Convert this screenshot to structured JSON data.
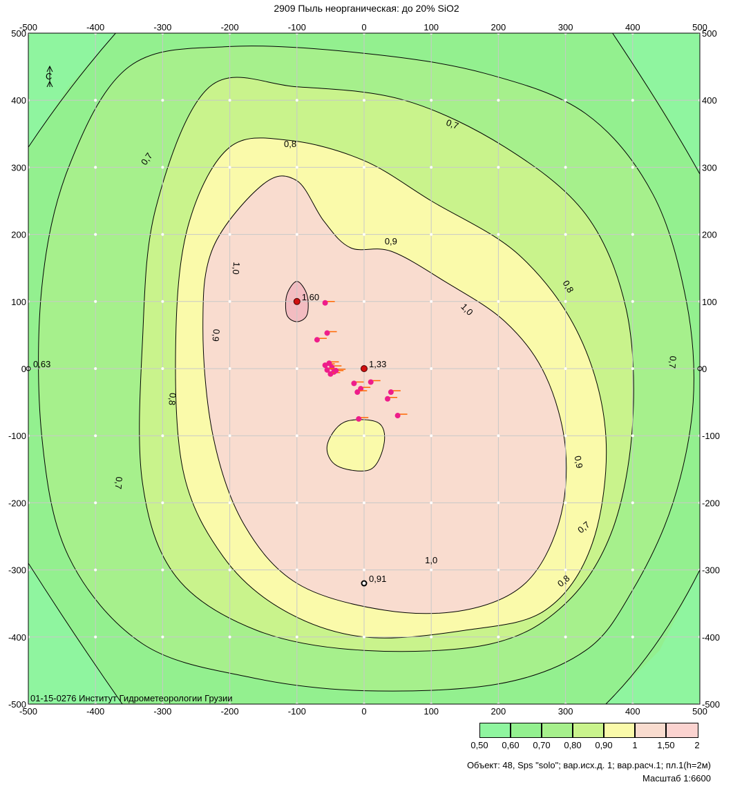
{
  "title": "2909 Пыль неорганическая: до 20% SiO2",
  "institute": "01-15-0276 Институт Гидрометеорологии Грузии",
  "footer_object": "Объект: 48, Sps \"solo\"; вар.исх.д. 1; вар.расч.1; пл.1(h=2м)",
  "footer_scale": "Масштаб 1:6600",
  "north_arrow_label": "С",
  "axis": {
    "x_range": [
      -500,
      500
    ],
    "y_range": [
      -500,
      500
    ],
    "ticks": [
      -500,
      -400,
      -300,
      -200,
      -100,
      0,
      100,
      200,
      300,
      400,
      500
    ]
  },
  "zones": [
    {
      "label": "0,50",
      "color": "#8ff59f"
    },
    {
      "label": "0,60",
      "color": "#93f08f"
    },
    {
      "label": "0,70",
      "color": "#a6f08c"
    },
    {
      "label": "0,80",
      "color": "#c9f38c"
    },
    {
      "label": "0,90",
      "color": "#fafaaa"
    },
    {
      "label": "1",
      "color": "#f9dccf"
    },
    {
      "label": "1,50",
      "color": "#fbd3d0"
    }
  ],
  "legend_end_label": "2",
  "contour_labels": [
    {
      "text": "0,7",
      "x": -320,
      "y": 310,
      "angle": -55
    },
    {
      "text": "0,7",
      "x": 130,
      "y": 360,
      "angle": 20
    },
    {
      "text": "0,7",
      "x": 455,
      "y": 10,
      "angle": 95
    },
    {
      "text": "0,7",
      "x": -370,
      "y": -170,
      "angle": 95
    },
    {
      "text": "0,7",
      "x": 330,
      "y": -240,
      "angle": -40
    },
    {
      "text": "0,8",
      "x": -110,
      "y": 330,
      "angle": 0
    },
    {
      "text": "0,8",
      "x": 300,
      "y": 120,
      "angle": 60
    },
    {
      "text": "0,8",
      "x": 300,
      "y": -320,
      "angle": -40
    },
    {
      "text": "0,8",
      "x": -290,
      "y": -45,
      "angle": 95
    },
    {
      "text": "0,9",
      "x": -225,
      "y": 50,
      "angle": 95
    },
    {
      "text": "0,9",
      "x": 315,
      "y": -140,
      "angle": 80
    },
    {
      "text": "0,9",
      "x": 40,
      "y": 185,
      "angle": 0
    },
    {
      "text": "1,0",
      "x": -195,
      "y": 150,
      "angle": 95
    },
    {
      "text": "1,0",
      "x": 150,
      "y": 85,
      "angle": 45
    },
    {
      "text": "1,0",
      "x": 100,
      "y": -290,
      "angle": 0
    }
  ],
  "points": [
    {
      "label": "1,60",
      "x": -100,
      "y": 100,
      "type": "max"
    },
    {
      "label": "1,33",
      "x": 0,
      "y": 0,
      "type": "max"
    },
    {
      "label": "0,91",
      "x": 0,
      "y": -320,
      "type": "open"
    },
    {
      "label": "0,63",
      "x": -500,
      "y": 0,
      "type": "edge"
    },
    {
      "label": "",
      "x": 500,
      "y": 0,
      "type": "edge"
    }
  ],
  "sources": [
    {
      "x": -58,
      "y": 98
    },
    {
      "x": -70,
      "y": 43
    },
    {
      "x": -55,
      "y": 53
    },
    {
      "x": -58,
      "y": 5
    },
    {
      "x": -52,
      "y": 8
    },
    {
      "x": -48,
      "y": 2
    },
    {
      "x": -55,
      "y": -2
    },
    {
      "x": -45,
      "y": -5
    },
    {
      "x": -50,
      "y": -8
    },
    {
      "x": -42,
      "y": -3
    },
    {
      "x": -15,
      "y": -22
    },
    {
      "x": -5,
      "y": -30
    },
    {
      "x": -10,
      "y": -35
    },
    {
      "x": 10,
      "y": -20
    },
    {
      "x": 40,
      "y": -35
    },
    {
      "x": 35,
      "y": -45
    },
    {
      "x": 50,
      "y": -70
    },
    {
      "x": -8,
      "y": -75
    }
  ]
}
